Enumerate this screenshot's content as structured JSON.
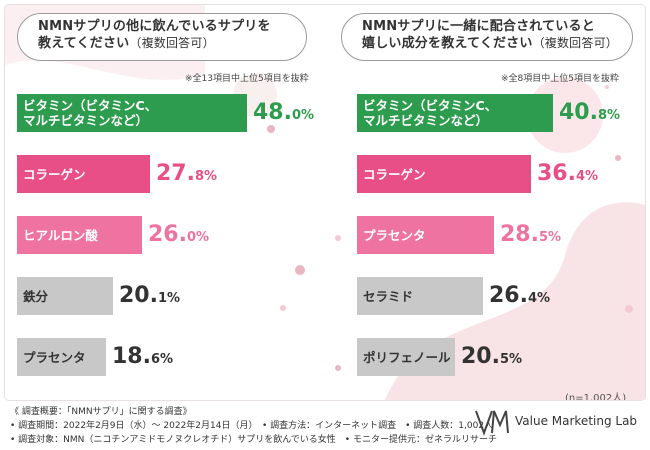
{
  "chart_data": [
    {
      "type": "bar",
      "title": "NMNサプリの他に飲んでいるサプリを 教えてください（複数回答可）",
      "title_lines": [
        "NMNサプリの他に飲んでいるサプリを",
        "教えてください"
      ],
      "title_sub": "（複数回答可）",
      "note": "※全13項目中上位5項目を抜粋",
      "categories": [
        "ビタミン（ビタミンC、マルチビタミンなど）",
        "コラーゲン",
        "ヒアルロン酸",
        "鉄分",
        "プラセンタ"
      ],
      "label_lines": [
        [
          "ビタミン（ビタミンC、",
          "マルチビタミンなど）"
        ],
        [
          "コラーゲン"
        ],
        [
          "ヒアルロン酸"
        ],
        [
          "鉄分"
        ],
        [
          "プラセンタ"
        ]
      ],
      "values": [
        48.0,
        27.8,
        26.0,
        20.1,
        18.6
      ],
      "value_labels": [
        [
          "48.",
          "0%"
        ],
        [
          "27.",
          "8%"
        ],
        [
          "26.",
          "0%"
        ],
        [
          "20.",
          "1%"
        ],
        [
          "18.",
          "6%"
        ]
      ],
      "colors": [
        "#2e9c4e",
        "#e84f86",
        "#ee73a0",
        "#c8c8c8",
        "#c8c8c8"
      ],
      "value_colors": [
        "#2e9c4e",
        "#e84f86",
        "#ee73a0",
        "#333333",
        "#333333"
      ]
    },
    {
      "type": "bar",
      "title": "NMNサプリに一緒に配合されていると 嬉しい成分を教えてください（複数回答可）",
      "title_lines": [
        "NMNサプリに一緒に配合されていると",
        "嬉しい成分を教えてください"
      ],
      "title_sub": "（複数回答可）",
      "note": "※全8項目中上位5項目を抜粋",
      "categories": [
        "ビタミン（ビタミンC、マルチビタミンなど）",
        "コラーゲン",
        "プラセンタ",
        "セラミド",
        "ポリフェノール"
      ],
      "label_lines": [
        [
          "ビタミン（ビタミンC、",
          "マルチビタミンなど）"
        ],
        [
          "コラーゲン"
        ],
        [
          "プラセンタ"
        ],
        [
          "セラミド"
        ],
        [
          "ポリフェノール"
        ]
      ],
      "values": [
        40.8,
        36.4,
        28.5,
        26.4,
        20.5
      ],
      "value_labels": [
        [
          "40.",
          "8%"
        ],
        [
          "36.",
          "4%"
        ],
        [
          "28.",
          "5%"
        ],
        [
          "26.",
          "4%"
        ],
        [
          "20.",
          "5%"
        ]
      ],
      "colors": [
        "#2e9c4e",
        "#e84f86",
        "#ee73a0",
        "#c8c8c8",
        "#c8c8c8"
      ],
      "value_colors": [
        "#2e9c4e",
        "#e84f86",
        "#ee73a0",
        "#333333",
        "#333333"
      ]
    }
  ],
  "sample_note": "(n=1,002人)",
  "footer": [
    "《 調査概要：「NMNサプリ」に関する調査》",
    "• 調査期間：2022年2月9日（水）～ 2022年2月14日（月）　• 調査方法：インターネット調査　• 調査人数：1,002人",
    "• 調査対象：NMN（ニコチンアミドモノヌクレオチド）サプリを飲んでいる女性　• モニター提供元：ゼネラルリサーチ"
  ],
  "logo": {
    "mark": "VM",
    "text": "Value Marketing Lab",
    "icon": "value-marketing-lab-logo"
  }
}
